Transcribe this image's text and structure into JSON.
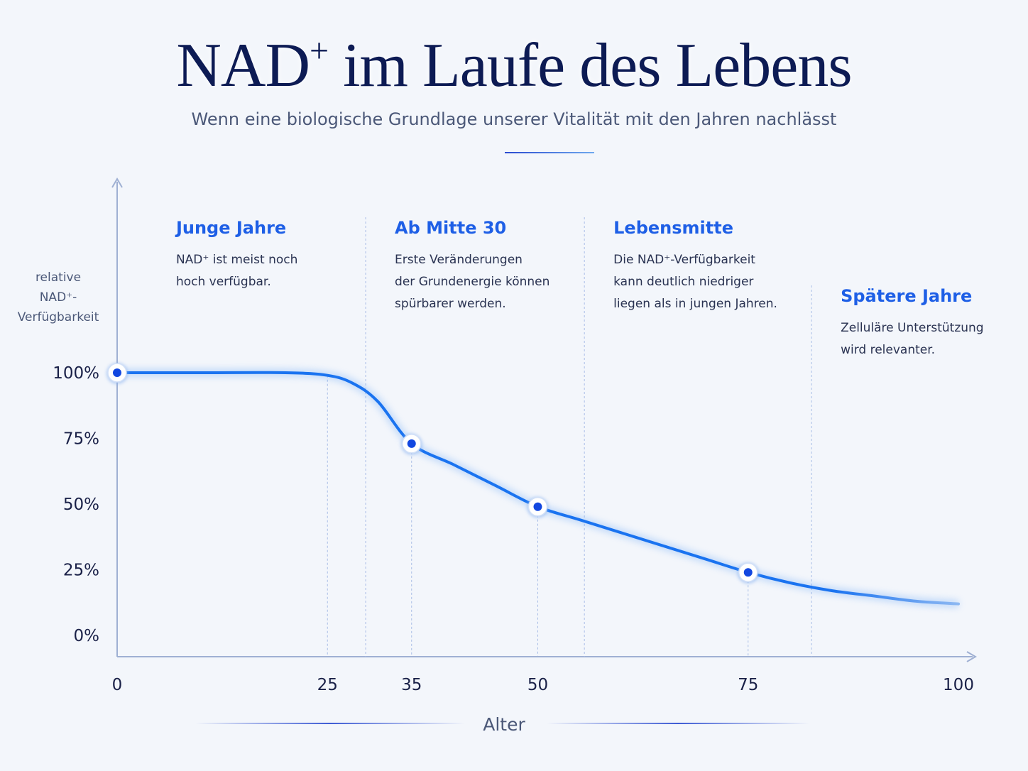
{
  "header": {
    "title_main": "NAD",
    "title_sup": "+",
    "title_rest": " im Laufe des Lebens",
    "subtitle": "Wenn eine biologische Grundlage unserer Vitalität mit den Jahren nachlässt"
  },
  "colors": {
    "curve": "#1a73f0",
    "accent_title": "#1e5fe6",
    "title": "#0d1b54",
    "axis": "#9fb0d3",
    "marker_dot": "#1247e0"
  },
  "chart_data": {
    "type": "line",
    "title": "NAD⁺ im Laufe des Lebens",
    "xlabel": "Alter",
    "ylabel": [
      "relative",
      "NAD⁺-",
      "Verfügbarkeit"
    ],
    "xlim": [
      0,
      100
    ],
    "ylim": [
      0,
      100
    ],
    "x_ticks": [
      0,
      25,
      35,
      50,
      75,
      100
    ],
    "y_ticks": [
      0,
      25,
      50,
      75,
      100
    ],
    "y_tick_labels": [
      "0%",
      "25%",
      "50%",
      "75%",
      "100%"
    ],
    "grid": false,
    "series": [
      {
        "x": [
          0,
          10,
          20,
          25,
          28,
          31,
          35,
          40,
          45,
          50,
          55,
          60,
          65,
          70,
          75,
          80,
          85,
          90,
          95,
          100
        ],
        "y": [
          100,
          100,
          100,
          99,
          96,
          89,
          73,
          65,
          57,
          49,
          44,
          39,
          34,
          29,
          24,
          20,
          17,
          15,
          13,
          12
        ]
      }
    ],
    "markers": [
      {
        "x": 0,
        "y": 100
      },
      {
        "x": 35,
        "y": 73
      },
      {
        "x": 50,
        "y": 49
      },
      {
        "x": 75,
        "y": 24
      }
    ],
    "guide_lines_x": [
      25,
      35,
      50,
      75
    ],
    "annotations": [
      {
        "x": 7,
        "title": "Junge Jahre",
        "lines": [
          "NAD⁺ ist meist noch",
          "hoch verfügbar."
        ]
      },
      {
        "x": 33,
        "title": "Ab Mitte 30",
        "lines": [
          "Erste Veränderungen",
          "der Grundenergie können",
          "spürbarer werden."
        ]
      },
      {
        "x": 59,
        "title": "Lebensmitte",
        "lines": [
          "Die NAD⁺-Verfügbarkeit",
          "kann deutlich niedriger",
          "liegen als in jungen Jahren."
        ]
      },
      {
        "x": 86,
        "title": "Spätere Jahre",
        "lines": [
          "Zelluläre Unterstützung",
          "wird relevanter."
        ]
      }
    ]
  }
}
